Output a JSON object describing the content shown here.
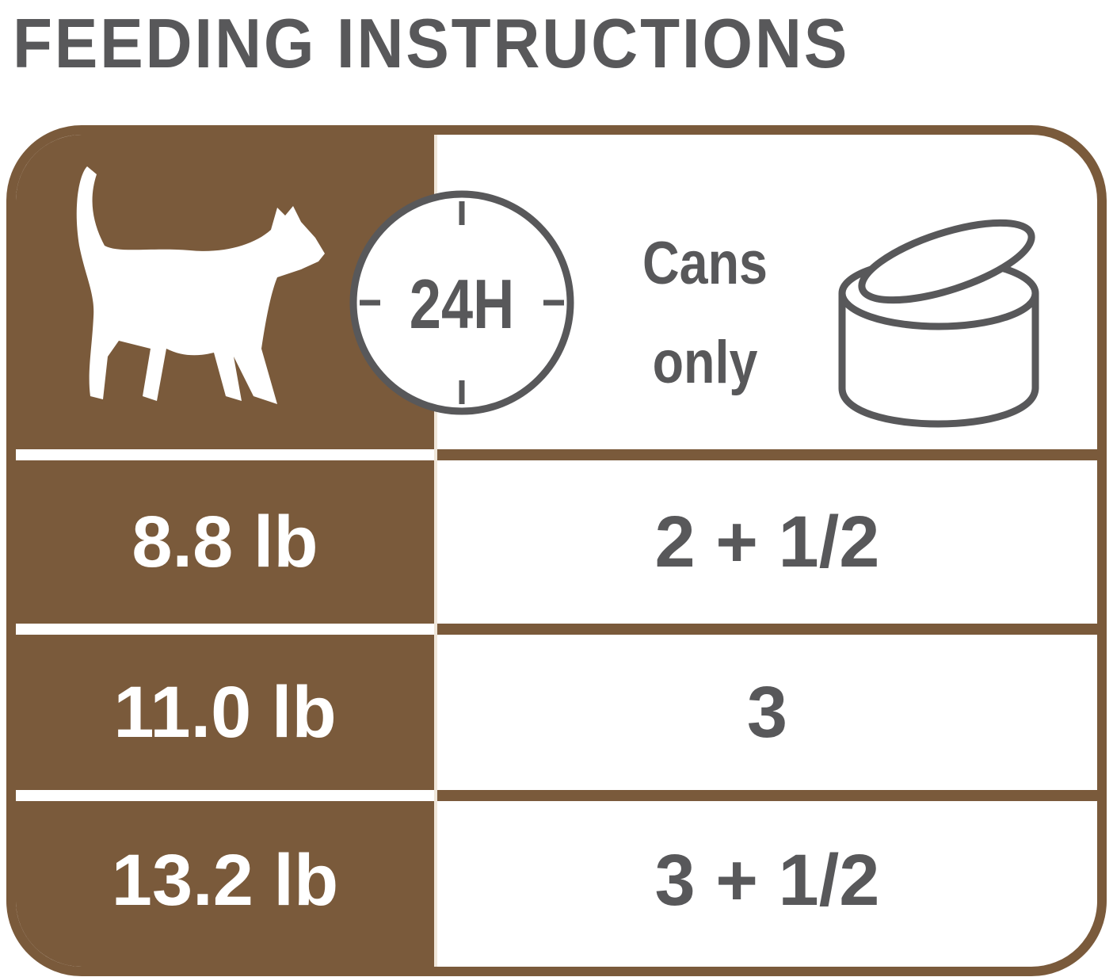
{
  "title": "FEEDING INSTRUCTIONS",
  "header": {
    "icons": [
      "cat-icon",
      "24h-clock-icon",
      "can-icon"
    ],
    "clock_label": "24H",
    "cans_label_line1": "Cans",
    "cans_label_line2": "only"
  },
  "rows": [
    {
      "weight": "8.8 lb",
      "cans": "2 + 1/2"
    },
    {
      "weight": "11.0 lb",
      "cans": "3"
    },
    {
      "weight": "13.2 lb",
      "cans": "3 + 1/2"
    }
  ],
  "colors": {
    "brown": "#7a5a3b",
    "gray": "#58585a"
  }
}
